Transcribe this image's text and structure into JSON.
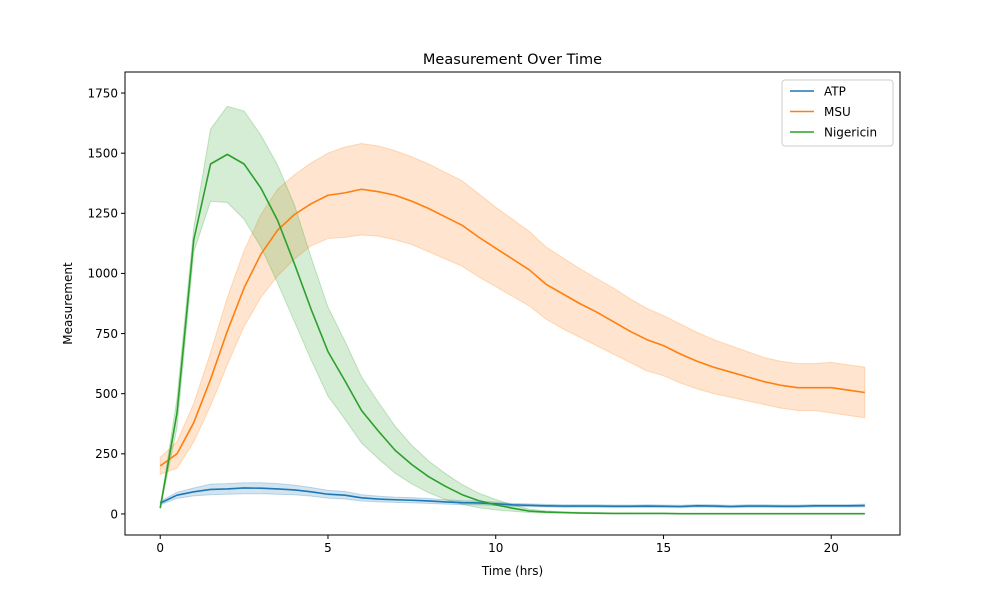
{
  "chart_data": {
    "type": "line",
    "title": "Measurement Over Time",
    "xlabel": "Time (hrs)",
    "ylabel": "Measurement",
    "xlim": [
      -1.05,
      22.05
    ],
    "ylim": [
      -87.5,
      1837.5
    ],
    "xticks": [
      0,
      5,
      10,
      15,
      20
    ],
    "yticks": [
      0,
      250,
      500,
      750,
      1000,
      1250,
      1500,
      1750
    ],
    "legend_position": "top-right",
    "grid": false,
    "x": [
      0,
      0.5,
      1,
      1.5,
      2,
      2.5,
      3,
      3.5,
      4,
      4.5,
      5,
      5.5,
      6,
      6.5,
      7,
      7.5,
      8,
      8.5,
      9,
      9.5,
      10,
      10.5,
      11,
      11.5,
      12,
      12.5,
      13,
      13.5,
      14,
      14.5,
      15,
      15.5,
      16,
      16.5,
      17,
      17.5,
      18,
      18.5,
      19,
      19.5,
      20,
      20.5,
      21
    ],
    "series": [
      {
        "name": "ATP",
        "color": "#1f77b4",
        "values": [
          45,
          78,
          92,
          102,
          104,
          108,
          107,
          104,
          100,
          92,
          82,
          78,
          67,
          62,
          59,
          57,
          54,
          50,
          47,
          46,
          42,
          38,
          36,
          34,
          33,
          33,
          33,
          32,
          32,
          33,
          32,
          31,
          34,
          33,
          31,
          33,
          33,
          32,
          32,
          34,
          34,
          34,
          35
        ],
        "lower": [
          38,
          65,
          75,
          80,
          82,
          84,
          84,
          82,
          80,
          74,
          66,
          62,
          54,
          50,
          48,
          46,
          44,
          41,
          39,
          38,
          35,
          32,
          30,
          29,
          28,
          28,
          28,
          27,
          27,
          28,
          27,
          26,
          29,
          28,
          26,
          28,
          28,
          27,
          27,
          29,
          29,
          29,
          29
        ],
        "upper": [
          52,
          90,
          108,
          124,
          126,
          130,
          130,
          126,
          120,
          110,
          98,
          94,
          80,
          74,
          70,
          68,
          64,
          59,
          55,
          54,
          49,
          44,
          42,
          40,
          38,
          38,
          38,
          37,
          37,
          38,
          37,
          36,
          39,
          38,
          36,
          38,
          38,
          37,
          37,
          39,
          39,
          39,
          41
        ]
      },
      {
        "name": "MSU",
        "color": "#ff7f0e",
        "values": [
          200,
          250,
          380,
          560,
          760,
          940,
          1080,
          1180,
          1245,
          1290,
          1325,
          1335,
          1350,
          1340,
          1325,
          1300,
          1270,
          1235,
          1200,
          1150,
          1105,
          1060,
          1015,
          955,
          915,
          875,
          840,
          800,
          760,
          725,
          700,
          665,
          635,
          610,
          590,
          570,
          550,
          535,
          525,
          525,
          525,
          515,
          505
        ],
        "lower": [
          165,
          190,
          300,
          450,
          620,
          780,
          900,
          990,
          1060,
          1115,
          1145,
          1150,
          1160,
          1155,
          1140,
          1120,
          1090,
          1060,
          1030,
          985,
          945,
          905,
          865,
          810,
          770,
          735,
          700,
          665,
          630,
          595,
          575,
          545,
          520,
          500,
          485,
          470,
          455,
          440,
          430,
          430,
          420,
          410,
          400
        ],
        "upper": [
          235,
          300,
          460,
          670,
          900,
          1095,
          1245,
          1350,
          1410,
          1460,
          1500,
          1525,
          1540,
          1530,
          1510,
          1485,
          1455,
          1420,
          1385,
          1330,
          1275,
          1225,
          1175,
          1110,
          1065,
          1020,
          980,
          940,
          895,
          855,
          825,
          790,
          755,
          725,
          700,
          675,
          650,
          635,
          625,
          625,
          630,
          620,
          610
        ]
      },
      {
        "name": "Nigericin",
        "color": "#2ca02c",
        "values": [
          25,
          420,
          1140,
          1455,
          1495,
          1455,
          1355,
          1220,
          1040,
          850,
          675,
          555,
          430,
          345,
          265,
          205,
          155,
          115,
          80,
          55,
          38,
          24,
          12,
          8,
          6,
          4,
          3,
          2,
          2,
          2,
          2,
          1,
          1,
          1,
          1,
          1,
          1,
          1,
          1,
          1,
          1,
          1,
          1
        ],
        "lower": [
          20,
          360,
          1090,
          1300,
          1295,
          1225,
          1110,
          960,
          800,
          640,
          490,
          395,
          295,
          230,
          170,
          125,
          88,
          60,
          40,
          26,
          17,
          11,
          6,
          4,
          3,
          2,
          1,
          1,
          1,
          1,
          1,
          0,
          0,
          0,
          0,
          0,
          0,
          0,
          0,
          0,
          0,
          0,
          0
        ],
        "upper": [
          30,
          480,
          1190,
          1600,
          1695,
          1675,
          1575,
          1450,
          1285,
          1065,
          860,
          720,
          570,
          465,
          365,
          285,
          220,
          168,
          122,
          86,
          60,
          38,
          20,
          13,
          9,
          7,
          5,
          4,
          3,
          3,
          3,
          2,
          2,
          2,
          2,
          2,
          2,
          2,
          2,
          2,
          2,
          2,
          2
        ]
      }
    ]
  }
}
